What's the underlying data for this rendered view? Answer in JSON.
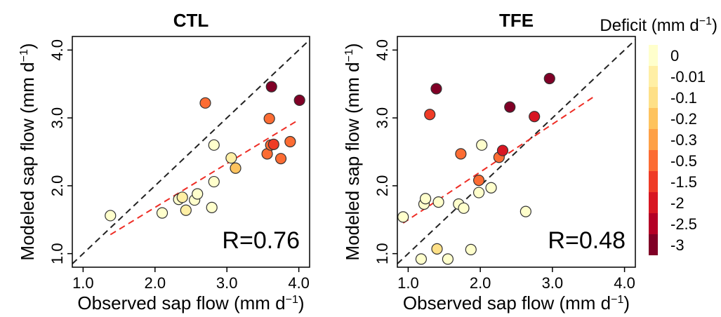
{
  "chart_data": [
    {
      "type": "scatter",
      "title": "CTL",
      "xlabel": "Observed sap flow (mm d",
      "ylabel": "Modeled sap flow (mm d",
      "label_exponent": "−1",
      "label_close": ")",
      "xlim": [
        0.85,
        4.15
      ],
      "ylim": [
        0.8,
        4.2
      ],
      "xticks": [
        1.0,
        2.0,
        3.0,
        4.0
      ],
      "yticks": [
        1.0,
        2.0,
        3.0,
        4.0
      ],
      "xtick_labels": [
        "1.0",
        "2.0",
        "3.0",
        "4.0"
      ],
      "ytick_labels": [
        "1.0",
        "2.0",
        "3.0",
        "4.0"
      ],
      "annotation": "R=0.76",
      "one_to_one_line": {
        "x": [
          0.85,
          4.15
        ],
        "y": [
          0.85,
          4.15
        ],
        "color": "#222222",
        "style": "dashed"
      },
      "fit_line": {
        "x": [
          1.38,
          3.98
        ],
        "y": [
          1.28,
          2.96
        ],
        "color": "#ee2d25",
        "style": "dashed"
      },
      "points": [
        {
          "x": 1.38,
          "y": 1.56,
          "deficit": 0
        },
        {
          "x": 2.1,
          "y": 1.6,
          "deficit": 0
        },
        {
          "x": 2.33,
          "y": 1.8,
          "deficit": 0
        },
        {
          "x": 2.38,
          "y": 1.83,
          "deficit": -0.01
        },
        {
          "x": 2.43,
          "y": 1.64,
          "deficit": -0.01
        },
        {
          "x": 2.55,
          "y": 1.79,
          "deficit": 0
        },
        {
          "x": 2.59,
          "y": 1.88,
          "deficit": 0
        },
        {
          "x": 2.79,
          "y": 1.68,
          "deficit": 0
        },
        {
          "x": 2.82,
          "y": 2.06,
          "deficit": 0
        },
        {
          "x": 2.82,
          "y": 2.6,
          "deficit": 0
        },
        {
          "x": 3.06,
          "y": 2.41,
          "deficit": -0.01
        },
        {
          "x": 3.12,
          "y": 2.26,
          "deficit": -0.2
        },
        {
          "x": 2.7,
          "y": 3.22,
          "deficit": -0.5
        },
        {
          "x": 3.56,
          "y": 2.47,
          "deficit": -0.5
        },
        {
          "x": 3.59,
          "y": 2.99,
          "deficit": -0.5
        },
        {
          "x": 3.61,
          "y": 2.6,
          "deficit": -0.5
        },
        {
          "x": 3.65,
          "y": 2.61,
          "deficit": -1.5
        },
        {
          "x": 3.75,
          "y": 2.4,
          "deficit": -0.5
        },
        {
          "x": 3.88,
          "y": 2.65,
          "deficit": -0.5
        },
        {
          "x": 3.62,
          "y": 3.46,
          "deficit": -3
        },
        {
          "x": 4.01,
          "y": 3.26,
          "deficit": -3
        }
      ]
    },
    {
      "type": "scatter",
      "title": "TFE",
      "xlabel": "Observed sap flow (mm d",
      "ylabel": "Modeled sap flow (mm d",
      "label_exponent": "−1",
      "label_close": ")",
      "xlim": [
        0.85,
        4.15
      ],
      "ylim": [
        0.8,
        4.2
      ],
      "xticks": [
        1.0,
        2.0,
        3.0,
        4.0
      ],
      "yticks": [
        1.0,
        2.0,
        3.0,
        4.0
      ],
      "xtick_labels": [
        "1.0",
        "2.0",
        "3.0",
        "4.0"
      ],
      "ytick_labels": [
        "1.0",
        "2.0",
        "3.0",
        "4.0"
      ],
      "annotation": "R=0.48",
      "one_to_one_line": {
        "x": [
          0.85,
          4.15
        ],
        "y": [
          0.85,
          4.15
        ],
        "color": "#222222",
        "style": "dashed"
      },
      "fit_line": {
        "x": [
          0.93,
          3.6
        ],
        "y": [
          1.45,
          3.33
        ],
        "color": "#ee2d25",
        "style": "dashed"
      },
      "points": [
        {
          "x": 0.93,
          "y": 1.54,
          "deficit": 0
        },
        {
          "x": 1.18,
          "y": 0.92,
          "deficit": 0
        },
        {
          "x": 1.22,
          "y": 1.73,
          "deficit": 0
        },
        {
          "x": 1.24,
          "y": 1.81,
          "deficit": 0
        },
        {
          "x": 1.4,
          "y": 1.07,
          "deficit": -0.1
        },
        {
          "x": 1.42,
          "y": 1.76,
          "deficit": 0
        },
        {
          "x": 1.55,
          "y": 0.92,
          "deficit": 0
        },
        {
          "x": 1.7,
          "y": 1.73,
          "deficit": 0
        },
        {
          "x": 1.77,
          "y": 1.67,
          "deficit": 0
        },
        {
          "x": 1.87,
          "y": 1.06,
          "deficit": 0
        },
        {
          "x": 1.98,
          "y": 1.9,
          "deficit": 0
        },
        {
          "x": 2.02,
          "y": 2.6,
          "deficit": 0
        },
        {
          "x": 2.15,
          "y": 1.97,
          "deficit": 0
        },
        {
          "x": 2.63,
          "y": 1.62,
          "deficit": 0
        },
        {
          "x": 1.73,
          "y": 2.47,
          "deficit": -0.5
        },
        {
          "x": 1.98,
          "y": 2.08,
          "deficit": -0.5
        },
        {
          "x": 2.26,
          "y": 2.42,
          "deficit": -0.5
        },
        {
          "x": 2.31,
          "y": 2.52,
          "deficit": -2
        },
        {
          "x": 1.3,
          "y": 3.05,
          "deficit": -1.5
        },
        {
          "x": 2.75,
          "y": 3.02,
          "deficit": -2
        },
        {
          "x": 1.39,
          "y": 3.43,
          "deficit": -3
        },
        {
          "x": 2.41,
          "y": 3.16,
          "deficit": -3
        },
        {
          "x": 2.96,
          "y": 3.58,
          "deficit": -3
        }
      ]
    }
  ],
  "colorbar": {
    "title": "Deficit (mm d",
    "title_exponent": "−1",
    "title_close": ")",
    "levels": [
      {
        "label": "0",
        "value": 0,
        "color": "#ffffcc"
      },
      {
        "label": "-0.01",
        "value": -0.01,
        "color": "#ffefa5"
      },
      {
        "label": "-0.1",
        "value": -0.1,
        "color": "#fee087"
      },
      {
        "label": "-0.2",
        "value": -0.2,
        "color": "#fec35e"
      },
      {
        "label": "-0.3",
        "value": -0.3,
        "color": "#fea046"
      },
      {
        "label": "-0.5",
        "value": -0.5,
        "color": "#fc6c33"
      },
      {
        "label": "-1.5",
        "value": -1.5,
        "color": "#ef3b26"
      },
      {
        "label": "-2",
        "value": -2,
        "color": "#d81622"
      },
      {
        "label": "-2.5",
        "value": -2.5,
        "color": "#b40026"
      },
      {
        "label": "-3",
        "value": -3,
        "color": "#800026"
      }
    ]
  }
}
